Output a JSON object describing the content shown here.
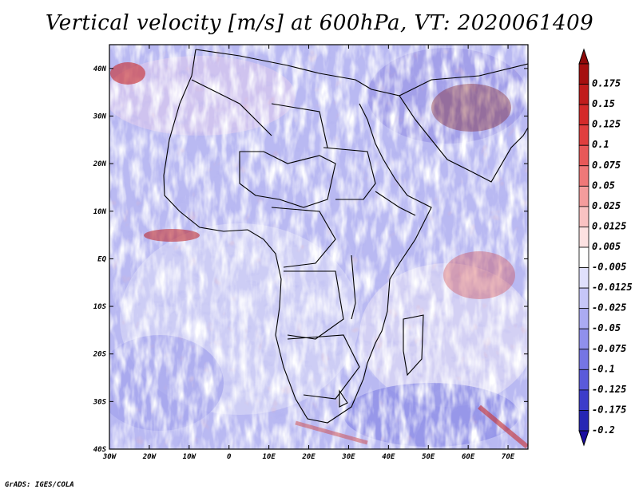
{
  "title": "Vertical velocity [m/s] at 600hPa, VT: 2020061409",
  "credit": "GrADS: IGES/COLA",
  "map": {
    "lon_range": [
      -30,
      75
    ],
    "lat_range": [
      -40,
      45
    ],
    "lon_ticks": [
      {
        "value": -30,
        "label": "30W"
      },
      {
        "value": -20,
        "label": "20W"
      },
      {
        "value": -10,
        "label": "10W"
      },
      {
        "value": 0,
        "label": "0"
      },
      {
        "value": 10,
        "label": "10E"
      },
      {
        "value": 20,
        "label": "20E"
      },
      {
        "value": 30,
        "label": "30E"
      },
      {
        "value": 40,
        "label": "40E"
      },
      {
        "value": 50,
        "label": "50E"
      },
      {
        "value": 60,
        "label": "60E"
      },
      {
        "value": 70,
        "label": "70E"
      }
    ],
    "lat_ticks": [
      {
        "value": 40,
        "label": "40N"
      },
      {
        "value": 30,
        "label": "30N"
      },
      {
        "value": 20,
        "label": "20N"
      },
      {
        "value": 10,
        "label": "10N"
      },
      {
        "value": 0,
        "label": "EQ"
      },
      {
        "value": -10,
        "label": "10S"
      },
      {
        "value": -20,
        "label": "20S"
      },
      {
        "value": -30,
        "label": "30S"
      },
      {
        "value": -40,
        "label": "40S"
      }
    ]
  },
  "colorbar": {
    "levels": [
      {
        "label": "0.175",
        "color": "#a50f0f"
      },
      {
        "label": "0.15",
        "color": "#c01c1c"
      },
      {
        "label": "0.125",
        "color": "#d42a2a"
      },
      {
        "label": "0.1",
        "color": "#e03e3e"
      },
      {
        "label": "0.075",
        "color": "#e85858"
      },
      {
        "label": "0.05",
        "color": "#ef7878"
      },
      {
        "label": "0.025",
        "color": "#f49c9c"
      },
      {
        "label": "0.0125",
        "color": "#f9c2c2"
      },
      {
        "label": "0.005",
        "color": "#fde2e2"
      },
      {
        "label": "-0.005",
        "color": "#ffffff"
      },
      {
        "label": "-0.0125",
        "color": "#e0e0fc"
      },
      {
        "label": "-0.025",
        "color": "#c6c6f8"
      },
      {
        "label": "-0.05",
        "color": "#ababf2"
      },
      {
        "label": "-0.075",
        "color": "#9090ec"
      },
      {
        "label": "-0.1",
        "color": "#7575e4"
      },
      {
        "label": "-0.125",
        "color": "#5a5ada"
      },
      {
        "label": "-0.175",
        "color": "#3d3dca"
      },
      {
        "label": "-0.2",
        "color": "#2626b4"
      }
    ],
    "bottom_color": "#1a0ca0",
    "top_color": "#8e0a0a"
  }
}
